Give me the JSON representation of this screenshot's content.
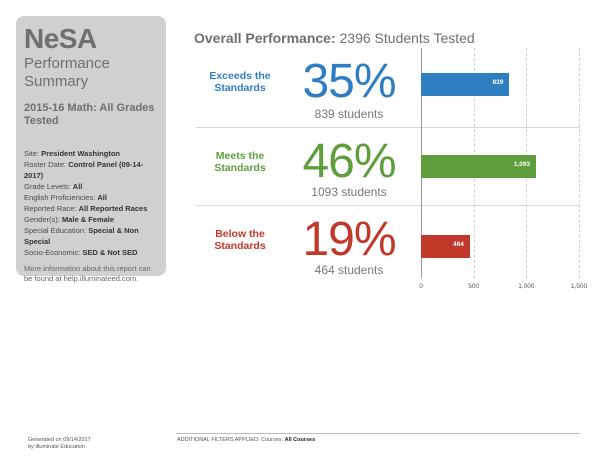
{
  "sidebar": {
    "brand": "NeSA",
    "brand_sub_1": "Performance",
    "brand_sub_2": "Summary",
    "test_title": "2015-16 Math: All Grades Tested",
    "info": [
      {
        "label": "Site: ",
        "value": "President Washington"
      },
      {
        "label": "Roster Date: ",
        "value": "Control Panel (09-14-2017)"
      },
      {
        "label": "Grade Levels: ",
        "value": "All"
      },
      {
        "label": "English Proficiencies: ",
        "value": "All"
      },
      {
        "label": "Reported Race: ",
        "value": "All Reported Races"
      },
      {
        "label": "Gender(s): ",
        "value": "Male & Female"
      },
      {
        "label": "Special Education: ",
        "value": "Special & Non Special"
      },
      {
        "label": "Socio-Economic: ",
        "value": "SED & Not SED"
      }
    ],
    "more_info": "More information about this report can be found at help.illuminateed.com."
  },
  "header": {
    "title_bold": "Overall Performance:",
    "title_rest": " 2396 Students Tested"
  },
  "rows": [
    {
      "label": "Exceeds the Standards",
      "percent": "35%",
      "students": "839 students",
      "bar_label": "839",
      "color": "#2f7ec1"
    },
    {
      "label": "Meets the Standards",
      "percent": "46%",
      "students": "1093 students",
      "bar_label": "1,093",
      "color": "#5f9e3c"
    },
    {
      "label": "Below the Standards",
      "percent": "19%",
      "students": "464 students",
      "bar_label": "464",
      "color": "#c0392b"
    }
  ],
  "chart_data": {
    "type": "bar",
    "orientation": "horizontal",
    "categories": [
      "Exceeds the Standards",
      "Meets the Standards",
      "Below the Standards"
    ],
    "values": [
      839,
      1093,
      464
    ],
    "xlim": [
      0,
      1500
    ],
    "ticks": [
      "0",
      "500",
      "1,000",
      "1,500"
    ],
    "colors": [
      "#2f7ec1",
      "#5f9e3c",
      "#c0392b"
    ],
    "grid": true
  },
  "footer": {
    "generated_1": "Generated on 09/14/2017",
    "generated_2": "by Illuminate Education",
    "filters_label": "ADDITIONAL FILTERS APPLIED:  Courses: ",
    "filters_value": "All Courses"
  }
}
